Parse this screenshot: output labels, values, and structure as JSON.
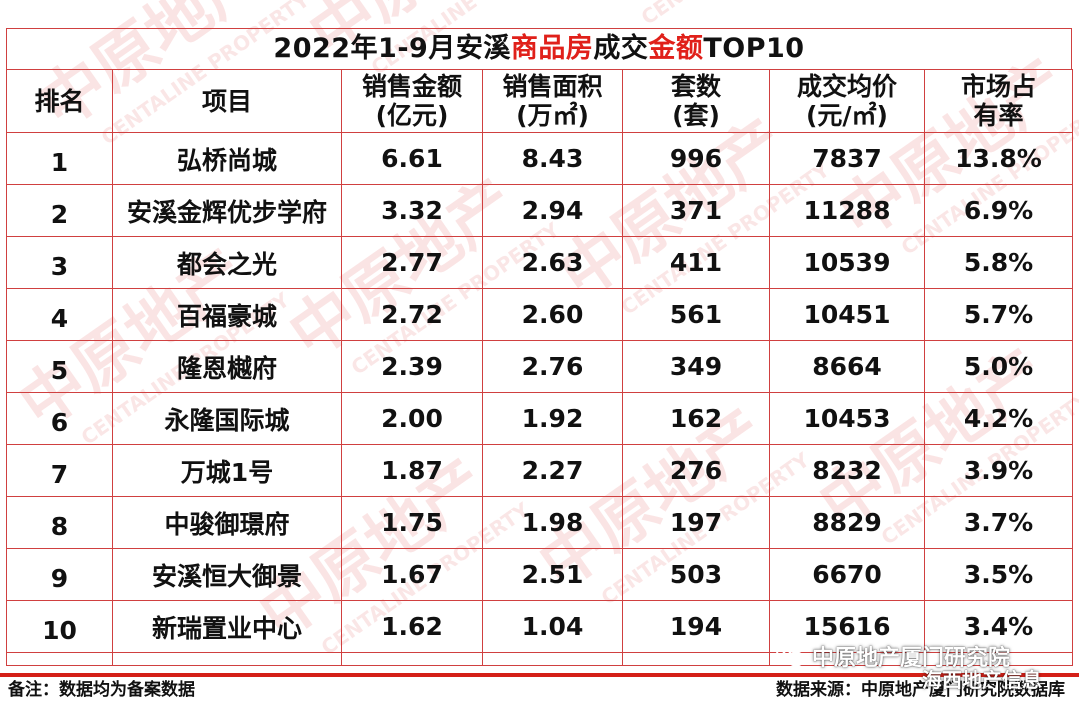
{
  "title": {
    "part1": "2022年1-9月安溪",
    "part2": "商品房",
    "part3": "成交",
    "part4": "金额",
    "part5": "TOP10"
  },
  "headers": {
    "rank": "排名",
    "project": "项目",
    "amount": [
      "销售金额",
      "(亿元)"
    ],
    "area": [
      "销售面积",
      "(万㎡)"
    ],
    "units": [
      "套数",
      "(套)"
    ],
    "price": [
      "成交均价",
      "(元/㎡)"
    ],
    "share": [
      "市场占",
      "有率"
    ]
  },
  "rows": [
    {
      "rank": "1",
      "project": "弘桥尚城",
      "amount": "6.61",
      "area": "8.43",
      "units": "996",
      "price": "7837",
      "share": "13.8%"
    },
    {
      "rank": "2",
      "project": "安溪金辉优步学府",
      "amount": "3.32",
      "area": "2.94",
      "units": "371",
      "price": "11288",
      "share": "6.9%"
    },
    {
      "rank": "3",
      "project": "都会之光",
      "amount": "2.77",
      "area": "2.63",
      "units": "411",
      "price": "10539",
      "share": "5.8%"
    },
    {
      "rank": "4",
      "project": "百福豪城",
      "amount": "2.72",
      "area": "2.60",
      "units": "561",
      "price": "10451",
      "share": "5.7%"
    },
    {
      "rank": "5",
      "project": "隆恩樾府",
      "amount": "2.39",
      "area": "2.76",
      "units": "349",
      "price": "8664",
      "share": "5.0%"
    },
    {
      "rank": "6",
      "project": "永隆国际城",
      "amount": "2.00",
      "area": "1.92",
      "units": "162",
      "price": "10453",
      "share": "4.2%"
    },
    {
      "rank": "7",
      "project": "万城1号",
      "amount": "1.87",
      "area": "2.27",
      "units": "276",
      "price": "8232",
      "share": "3.9%"
    },
    {
      "rank": "8",
      "project": "中骏御璟府",
      "amount": "1.75",
      "area": "1.98",
      "units": "197",
      "price": "8829",
      "share": "3.7%"
    },
    {
      "rank": "9",
      "project": "安溪恒大御景",
      "amount": "1.67",
      "area": "2.51",
      "units": "503",
      "price": "6670",
      "share": "3.5%"
    },
    {
      "rank": "10",
      "project": "新瑞置业中心",
      "amount": "1.62",
      "area": "1.04",
      "units": "194",
      "price": "15616",
      "share": "3.4%"
    }
  ],
  "footer": {
    "note": "备注：数据均为备案数据",
    "source": "数据来源：中原地产厦门研究院数据库"
  },
  "wechat": {
    "account": "中原地产厦门研究院",
    "sub": "海西地产信息"
  },
  "watermark": {
    "brand": "中原地产",
    "brand_en": "CENTALINE PROPERTY"
  },
  "colors": {
    "grid": "#d04040",
    "highlight": "#e0201a",
    "bar": "#d42018",
    "watermark": "#f3c9c9"
  }
}
